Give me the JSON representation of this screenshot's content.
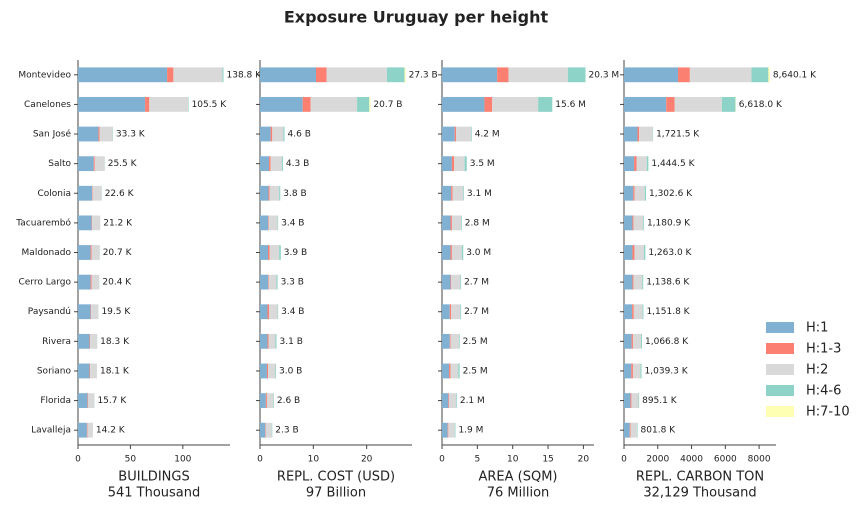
{
  "title": "Exposure Uruguay per height",
  "chart_data": [
    {
      "type": "barh",
      "xlabel": "BUILDINGS",
      "xlabel_total": "541 Thousand",
      "categories": [
        "Montevideo",
        "Canelones",
        "San José",
        "Salto",
        "Colonia",
        "Tacuarembó",
        "Maldonado",
        "Cerro Largo",
        "Paysandú",
        "Rivera",
        "Soriano",
        "Florida",
        "Lavalleja"
      ],
      "series": [
        {
          "name": "H:1",
          "color": "#80b1d3",
          "values": [
            85,
            64,
            19.5,
            15,
            13.5,
            13,
            12,
            12,
            12,
            11,
            11,
            9,
            8.5
          ]
        },
        {
          "name": "H:1-3",
          "color": "#fb8072",
          "values": [
            6,
            4,
            1,
            1,
            0.5,
            0.5,
            1,
            1,
            0.5,
            0.5,
            0.5,
            0.5,
            0.5
          ]
        },
        {
          "name": "H:2",
          "color": "#d9d9d9",
          "values": [
            46.8,
            37,
            12.5,
            9.3,
            8.4,
            7.6,
            7.5,
            7.3,
            6.9,
            6.7,
            6.5,
            6.1,
            5.1
          ]
        },
        {
          "name": "H:4-6",
          "color": "#8dd3c7",
          "values": [
            1,
            0.5,
            0.3,
            0.2,
            0.2,
            0.1,
            0.2,
            0.1,
            0.1,
            0.1,
            0.1,
            0.1,
            0.1
          ]
        },
        {
          "name": "H:7-10",
          "color": "#ffffb3",
          "values": [
            0,
            0,
            0,
            0,
            0,
            0,
            0,
            0,
            0,
            0,
            0,
            0,
            0
          ]
        }
      ],
      "totals": [
        138.8,
        105.5,
        33.3,
        25.5,
        22.6,
        21.2,
        20.7,
        20.4,
        19.5,
        18.3,
        18.1,
        15.7,
        14.2
      ],
      "total_labels": [
        "138.8 K",
        "105.5 K",
        "33.3 K",
        "25.5 K",
        "22.6 K",
        "21.2 K",
        "20.7 K",
        "20.4 K",
        "19.5 K",
        "18.3 K",
        "18.1 K",
        "15.7 K",
        "14.2 K"
      ],
      "xlim": [
        0,
        145
      ],
      "xticks": [
        0,
        50,
        100
      ]
    },
    {
      "type": "barh",
      "xlabel": "REPL. COST (USD)",
      "xlabel_total": "97 Billion",
      "categories": [
        "Montevideo",
        "Canelones",
        "San José",
        "Salto",
        "Colonia",
        "Tacuarembó",
        "Maldonado",
        "Cerro Largo",
        "Paysandú",
        "Rivera",
        "Soriano",
        "Florida",
        "Lavalleja"
      ],
      "series": [
        {
          "name": "H:1",
          "color": "#80b1d3",
          "values": [
            10.5,
            8,
            2,
            1.7,
            1.6,
            1.5,
            1.5,
            1.5,
            1.4,
            1.4,
            1.3,
            1.1,
            1.0
          ]
        },
        {
          "name": "H:1-3",
          "color": "#fb8072",
          "values": [
            2,
            1.5,
            0.3,
            0.3,
            0.2,
            0.1,
            0.3,
            0.1,
            0.3,
            0.2,
            0.2,
            0.2,
            0.1
          ]
        },
        {
          "name": "H:2",
          "color": "#d9d9d9",
          "values": [
            11.3,
            8.7,
            2.1,
            2.1,
            1.8,
            1.7,
            1.8,
            1.5,
            1.6,
            1.3,
            1.4,
            1.2,
            1.1
          ]
        },
        {
          "name": "H:4-6",
          "color": "#8dd3c7",
          "values": [
            3.3,
            2.3,
            0.2,
            0.2,
            0.2,
            0.1,
            0.3,
            0.2,
            0.1,
            0.2,
            0.1,
            0.1,
            0.1
          ]
        },
        {
          "name": "H:7-10",
          "color": "#ffffb3",
          "values": [
            0.2,
            0.2,
            0,
            0,
            0,
            0,
            0,
            0,
            0,
            0,
            0,
            0,
            0
          ]
        }
      ],
      "totals": [
        27.3,
        20.7,
        4.6,
        4.3,
        3.8,
        3.4,
        3.9,
        3.3,
        3.4,
        3.1,
        3.0,
        2.6,
        2.3
      ],
      "total_labels": [
        "27.3 B",
        "20.7 B",
        "4.6 B",
        "4.3 B",
        "3.8 B",
        "3.4 B",
        "3.9 B",
        "3.3 B",
        "3.4 B",
        "3.1 B",
        "3.0 B",
        "2.6 B",
        "2.3 B"
      ],
      "xlim": [
        0,
        28.5
      ],
      "xticks": [
        0,
        10,
        20
      ]
    },
    {
      "type": "barh",
      "xlabel": "AREA (SQM)",
      "xlabel_total": "76 Million",
      "categories": [
        "Montevideo",
        "Canelones",
        "San José",
        "Salto",
        "Colonia",
        "Tacuarembó",
        "Maldonado",
        "Cerro Largo",
        "Paysandú",
        "Rivera",
        "Soriano",
        "Florida",
        "Lavalleja"
      ],
      "series": [
        {
          "name": "H:1",
          "color": "#80b1d3",
          "values": [
            7.8,
            6,
            1.8,
            1.4,
            1.3,
            1.2,
            1.2,
            1.2,
            1.1,
            1.1,
            1.0,
            0.9,
            0.8
          ]
        },
        {
          "name": "H:1-3",
          "color": "#fb8072",
          "values": [
            1.6,
            1.1,
            0.2,
            0.3,
            0.2,
            0.2,
            0.2,
            0.1,
            0.2,
            0.1,
            0.2,
            0.1,
            0.1
          ]
        },
        {
          "name": "H:2",
          "color": "#d9d9d9",
          "values": [
            8.4,
            6.5,
            2.1,
            1.5,
            1.5,
            1.3,
            1.4,
            1.3,
            1.3,
            1.2,
            1.1,
            1.0,
            0.9
          ]
        },
        {
          "name": "H:4-6",
          "color": "#8dd3c7",
          "values": [
            2.5,
            2,
            0.1,
            0.3,
            0.1,
            0.1,
            0.2,
            0.1,
            0.1,
            0.1,
            0.2,
            0.1,
            0.1
          ]
        },
        {
          "name": "H:7-10",
          "color": "#ffffb3",
          "values": [
            0,
            0,
            0,
            0,
            0,
            0,
            0,
            0,
            0,
            0,
            0,
            0,
            0
          ]
        }
      ],
      "totals": [
        20.3,
        15.6,
        4.2,
        3.5,
        3.1,
        2.8,
        3.0,
        2.7,
        2.7,
        2.5,
        2.5,
        2.1,
        1.9
      ],
      "total_labels": [
        "20.3 M",
        "15.6 M",
        "4.2 M",
        "3.5 M",
        "3.1 M",
        "2.8 M",
        "3.0 M",
        "2.7 M",
        "2.7 M",
        "2.5 M",
        "2.5 M",
        "2.1 M",
        "1.9 M"
      ],
      "xlim": [
        0,
        21.5
      ],
      "xticks": [
        0,
        5,
        10,
        15,
        20
      ]
    },
    {
      "type": "barh",
      "xlabel": "REPL. CARBON TON",
      "xlabel_total": "32,129 Thousand",
      "categories": [
        "Montevideo",
        "Canelones",
        "San José",
        "Salto",
        "Colonia",
        "Tacuarembó",
        "Maldonado",
        "Cerro Largo",
        "Paysandú",
        "Rivera",
        "Soriano",
        "Florida",
        "Lavalleja"
      ],
      "series": [
        {
          "name": "H:1",
          "color": "#80b1d3",
          "values": [
            3200,
            2500,
            800,
            600,
            550,
            500,
            500,
            500,
            480,
            450,
            430,
            380,
            340
          ]
        },
        {
          "name": "H:1-3",
          "color": "#fb8072",
          "values": [
            700,
            500,
            100,
            150,
            80,
            60,
            120,
            60,
            100,
            80,
            100,
            60,
            50
          ]
        },
        {
          "name": "H:2",
          "color": "#d9d9d9",
          "values": [
            3650,
            2800,
            800,
            600,
            600,
            580,
            560,
            520,
            520,
            480,
            450,
            420,
            380
          ]
        },
        {
          "name": "H:4-6",
          "color": "#8dd3c7",
          "values": [
            1000,
            800,
            21.5,
            94.5,
            72.6,
            40.9,
            83,
            58.6,
            51.8,
            56.8,
            59.3,
            35.1,
            31.8
          ]
        },
        {
          "name": "H:7-10",
          "color": "#ffffb3",
          "values": [
            90.1,
            18,
            0,
            0,
            0,
            0,
            0,
            0,
            0,
            0,
            0,
            0,
            0
          ]
        }
      ],
      "totals": [
        8640.1,
        6618.0,
        1721.5,
        1444.5,
        1302.6,
        1180.9,
        1263.0,
        1138.6,
        1151.8,
        1066.8,
        1039.3,
        895.1,
        801.8
      ],
      "total_labels": [
        "8,640.1 K",
        "6,618.0 K",
        "1,721.5 K",
        "1,444.5 K",
        "1,302.6 K",
        "1,180.9 K",
        "1,263.0 K",
        "1,138.6 K",
        "1,151.8 K",
        "1,066.8 K",
        "1,039.3 K",
        "895.1 K",
        "801.8 K"
      ],
      "xlim": [
        0,
        9000
      ],
      "xticks": [
        0,
        2000,
        4000,
        6000,
        8000
      ]
    }
  ]
}
